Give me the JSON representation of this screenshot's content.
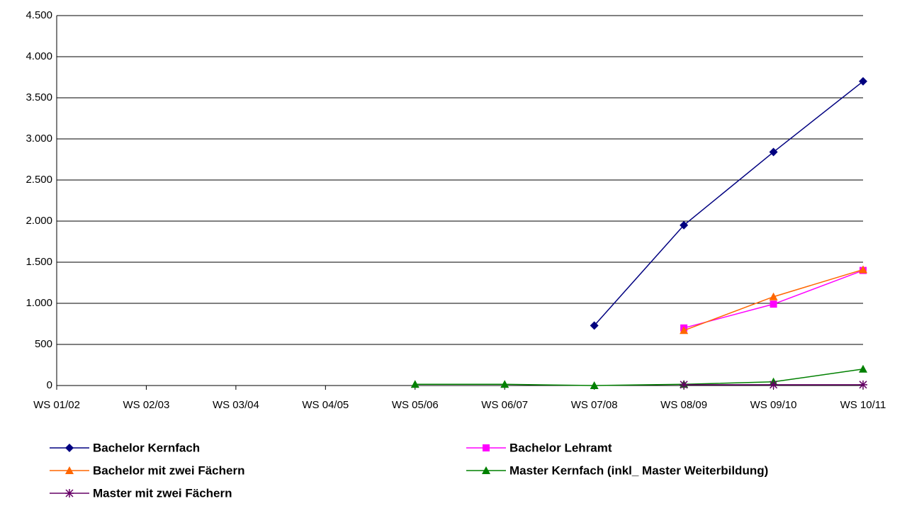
{
  "chart_data": {
    "type": "line",
    "categories": [
      "WS 01/02",
      "WS 02/03",
      "WS 03/04",
      "WS 04/05",
      "WS 05/06",
      "WS 06/07",
      "WS 07/08",
      "WS 08/09",
      "WS 09/10",
      "WS 10/11"
    ],
    "series": [
      {
        "name": "Bachelor Kernfach",
        "color": "#000080",
        "marker": "diamond",
        "values": [
          null,
          null,
          null,
          null,
          null,
          null,
          730,
          1950,
          2840,
          3700
        ]
      },
      {
        "name": "Bachelor Lehramt",
        "color": "#ff00ff",
        "marker": "square",
        "values": [
          null,
          null,
          null,
          null,
          null,
          null,
          null,
          700,
          990,
          1400
        ]
      },
      {
        "name": "Bachelor mit zwei Fächern",
        "color": "#ff6600",
        "marker": "triangle",
        "values": [
          null,
          null,
          null,
          null,
          null,
          null,
          null,
          670,
          1080,
          1410
        ]
      },
      {
        "name": "Master Kernfach (inkl_ Master Weiterbildung)",
        "color": "#008000",
        "marker": "triangle",
        "values": [
          null,
          null,
          null,
          null,
          15,
          15,
          0,
          15,
          45,
          200
        ]
      },
      {
        "name": "Master mit zwei Fächern",
        "color": "#660066",
        "marker": "star",
        "values": [
          null,
          null,
          null,
          null,
          null,
          null,
          null,
          10,
          10,
          10
        ]
      }
    ],
    "ylim": [
      0,
      4500
    ],
    "yticks": [
      0,
      500,
      {
        "value": 1000,
        "label": "1.000"
      },
      {
        "value": 1500,
        "label": "1.500"
      },
      {
        "value": 2000,
        "label": "2.000"
      },
      {
        "value": 2500,
        "label": "2.500"
      },
      {
        "value": 3000,
        "label": "3.000"
      },
      {
        "value": 3500,
        "label": "3.500"
      },
      {
        "value": 4000,
        "label": "4.000"
      },
      {
        "value": 4500,
        "label": "4.500"
      }
    ],
    "grid": true,
    "legend": "bottom"
  }
}
